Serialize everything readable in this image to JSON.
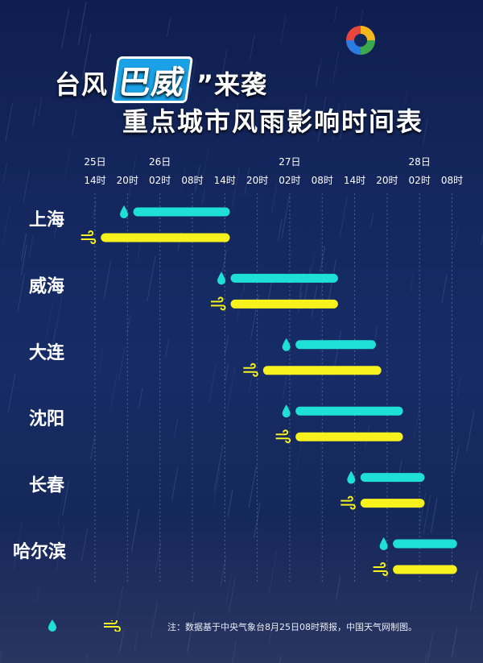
{
  "title": {
    "line1_prefix": "台风",
    "line1_highlight": "巴威",
    "line1_suffix": "”来袭",
    "line2": "重点城市风雨影响时间表"
  },
  "colors": {
    "rain": "#1ee0d7",
    "wind": "#f7f21d",
    "grid": "#9aa6c8",
    "label": "#ffffff",
    "axis_text": "#ffffff"
  },
  "note": "注：数据基于中央气象台8月25日08时预报，中国天气网制图。",
  "chart_data": {
    "type": "gantt",
    "x_unit": "hours from 25日14时",
    "date_labels": [
      {
        "label": "25日",
        "x": 0
      },
      {
        "label": "26日",
        "x": 12
      },
      {
        "label": "27日",
        "x": 36
      },
      {
        "label": "28日",
        "x": 60
      }
    ],
    "time_ticks": [
      {
        "label": "14时",
        "x": 0
      },
      {
        "label": "20时",
        "x": 6
      },
      {
        "label": "02时",
        "x": 12
      },
      {
        "label": "08时",
        "x": 18
      },
      {
        "label": "14时",
        "x": 24
      },
      {
        "label": "20时",
        "x": 30
      },
      {
        "label": "02时",
        "x": 36
      },
      {
        "label": "08时",
        "x": 42
      },
      {
        "label": "14时",
        "x": 48
      },
      {
        "label": "20时",
        "x": 54
      },
      {
        "label": "02时",
        "x": 60
      },
      {
        "label": "08时",
        "x": 66
      }
    ],
    "series": [
      {
        "icon": "raindrop-icon"
      },
      {
        "icon": "wind-icon"
      }
    ],
    "cities": [
      {
        "name": "上海",
        "rain": [
          7,
          25
        ],
        "wind": [
          1,
          25
        ]
      },
      {
        "name": "威海",
        "rain": [
          25,
          45
        ],
        "wind": [
          25,
          45
        ]
      },
      {
        "name": "大连",
        "rain": [
          37,
          52
        ],
        "wind": [
          31,
          53
        ]
      },
      {
        "name": "沈阳",
        "rain": [
          37,
          57
        ],
        "wind": [
          37,
          57
        ]
      },
      {
        "name": "长春",
        "rain": [
          49,
          61
        ],
        "wind": [
          49,
          61
        ]
      },
      {
        "name": "哈尔滨",
        "rain": [
          55,
          67
        ],
        "wind": [
          55,
          67
        ]
      }
    ]
  }
}
